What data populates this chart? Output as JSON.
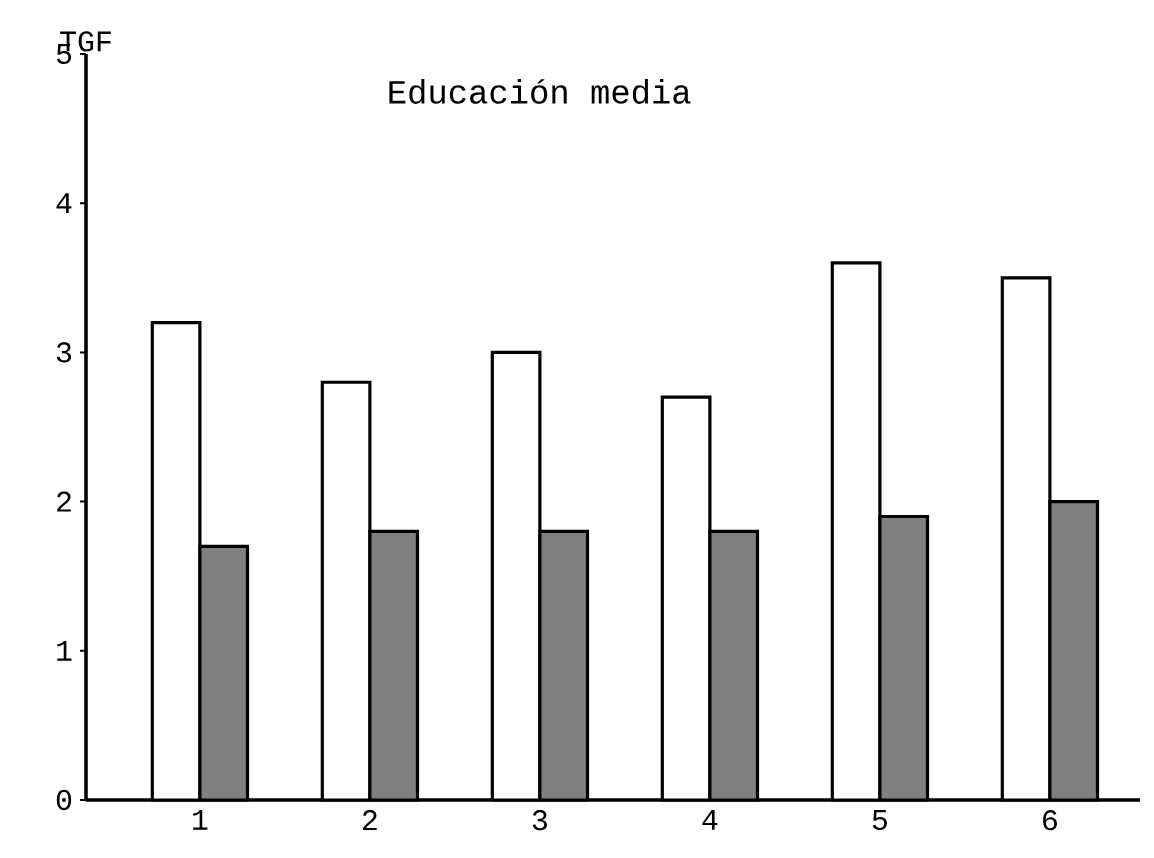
{
  "chart_data": {
    "type": "bar",
    "title": "Educación media",
    "ylabel": "TGF",
    "categories": [
      "1",
      "2",
      "3",
      "4",
      "5",
      "6"
    ],
    "series": [
      {
        "color": "#ffffff",
        "values": [
          3.2,
          2.8,
          3.0,
          2.7,
          3.6,
          3.5
        ]
      },
      {
        "color": "#808080",
        "values": [
          1.7,
          1.8,
          1.8,
          1.8,
          1.9,
          2.0
        ]
      }
    ],
    "ylim": [
      0,
      5
    ],
    "yticks": [
      0,
      1,
      2,
      3,
      4,
      5
    ]
  }
}
